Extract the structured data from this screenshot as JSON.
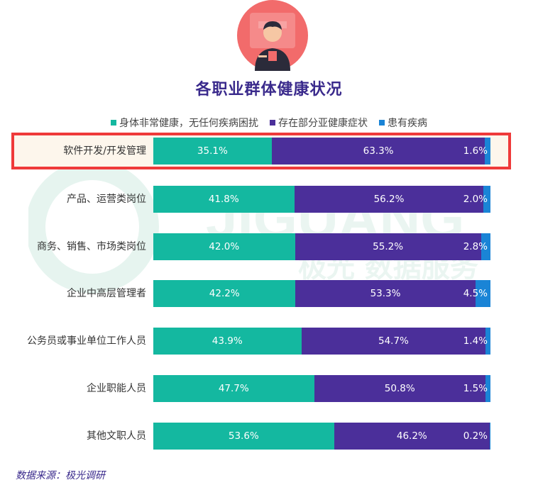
{
  "header": {
    "title": "各职业群体健康状况"
  },
  "colors": {
    "healthy": "#14b8a0",
    "symptoms": "#4b2f9a",
    "disease": "#1a84d6",
    "highlight": "#ef3a3a",
    "title": "#3a2a8c"
  },
  "legend": [
    {
      "label": "身体非常健康，无任何疾病困扰",
      "color": "#14b8a0"
    },
    {
      "label": "存在部分亚健康症状",
      "color": "#4b2f9a"
    },
    {
      "label": "患有疾病",
      "color": "#1a84d6"
    }
  ],
  "watermark": {
    "brand": "JIGUANG",
    "text": "极光 数据服务"
  },
  "chart_data": {
    "type": "bar",
    "orientation": "horizontal",
    "stacked": "percent",
    "title": "各职业群体健康状况",
    "categories": [
      "软件开发/开发管理",
      "产品、运营类岗位",
      "商务、销售、市场类岗位",
      "企业中高层管理者",
      "公务员或事业单位工作人员",
      "企业职能人员",
      "其他文职人员"
    ],
    "series": [
      {
        "name": "身体非常健康，无任何疾病困扰",
        "values": [
          35.1,
          41.8,
          42.0,
          42.2,
          43.9,
          47.7,
          53.6
        ],
        "labels": [
          "35.1%",
          "41.8%",
          "42.0%",
          "42.2%",
          "43.9%",
          "47.7%",
          "53.6%"
        ]
      },
      {
        "name": "存在部分亚健康症状",
        "values": [
          63.3,
          56.2,
          55.2,
          53.3,
          54.7,
          50.8,
          46.2
        ],
        "labels": [
          "63.3%",
          "56.2%",
          "55.2%",
          "53.3%",
          "54.7%",
          "50.8%",
          "46.2%"
        ]
      },
      {
        "name": "患有疾病",
        "values": [
          1.6,
          2.0,
          2.8,
          4.5,
          1.4,
          1.5,
          0.2
        ],
        "labels": [
          "1.6%",
          "2.0%",
          "2.8%",
          "4.5%",
          "1.4%",
          "1.5%",
          "0.2%"
        ]
      }
    ],
    "highlighted_category": "软件开发/开发管理",
    "legend_position": "top"
  },
  "footer": {
    "source": "数据来源：极光调研"
  }
}
